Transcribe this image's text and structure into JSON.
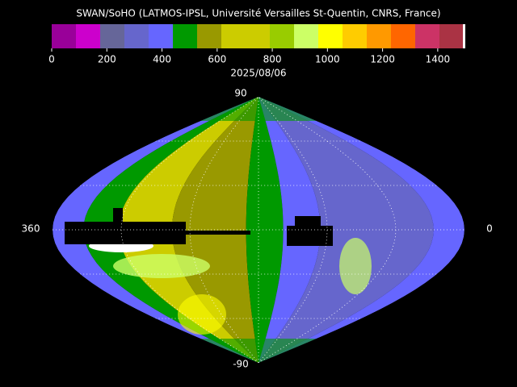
{
  "header": {
    "title": "SWAN/SoHO (LATMOS-IPSL, Université Versailles St-Quentin, CNRS, France)",
    "date": "2025/08/06"
  },
  "colorbar": {
    "range": [
      0,
      1500
    ],
    "ticks": [
      0,
      200,
      400,
      600,
      800,
      1000,
      1200,
      1400
    ],
    "colors": [
      "#990099",
      "#cc00cc",
      "#666699",
      "#6666cc",
      "#6666ff",
      "#009900",
      "#999900",
      "#cccc00",
      "#cccc00",
      "#99cc00",
      "#ccff66",
      "#ffff00",
      "#ffcc00",
      "#ff9900",
      "#ff6600",
      "#cc3366",
      "#aa3344"
    ]
  },
  "map": {
    "top_label": "90",
    "bottom_label": "-90",
    "left_label": "360",
    "right_label": "0"
  }
}
